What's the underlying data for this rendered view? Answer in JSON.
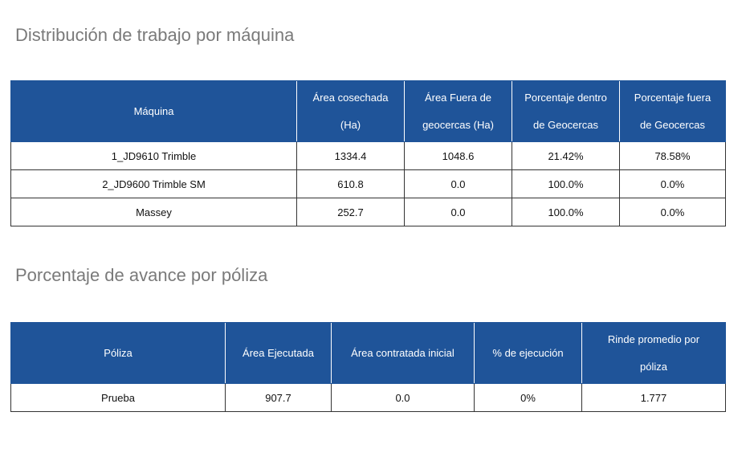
{
  "section1": {
    "title": "Distribución de trabajo por máquina",
    "headers": [
      {
        "line1": "Máquina",
        "line2": ""
      },
      {
        "line1": "Área cosechada",
        "line2": "(Ha)"
      },
      {
        "line1": "Área Fuera de",
        "line2": "geocercas (Ha)"
      },
      {
        "line1": "Porcentaje dentro",
        "line2": "de Geocercas"
      },
      {
        "line1": "Porcentaje fuera",
        "line2": "de Geocercas"
      }
    ],
    "rows": [
      [
        "1_JD9610 Trimble",
        "1334.4",
        "1048.6",
        "21.42%",
        "78.58%"
      ],
      [
        "2_JD9600 Trimble SM",
        "610.8",
        "0.0",
        "100.0%",
        "0.0%"
      ],
      [
        "Massey",
        "252.7",
        "0.0",
        "100.0%",
        "0.0%"
      ]
    ]
  },
  "section2": {
    "title": "Porcentaje de avance por póliza",
    "headers": [
      {
        "line1": "Póliza",
        "line2": ""
      },
      {
        "line1": "Área Ejecutada",
        "line2": ""
      },
      {
        "line1": "Área contratada inicial",
        "line2": ""
      },
      {
        "line1": "% de ejecución",
        "line2": ""
      },
      {
        "line1": "Rinde promedio por",
        "line2": "póliza"
      }
    ],
    "rows": [
      [
        "Prueba",
        "907.7",
        "0.0",
        "0%",
        "1.777"
      ]
    ]
  },
  "colors": {
    "header_bg": "#1f5499",
    "header_text": "#ffffff",
    "title_text": "#7a7a7a"
  }
}
